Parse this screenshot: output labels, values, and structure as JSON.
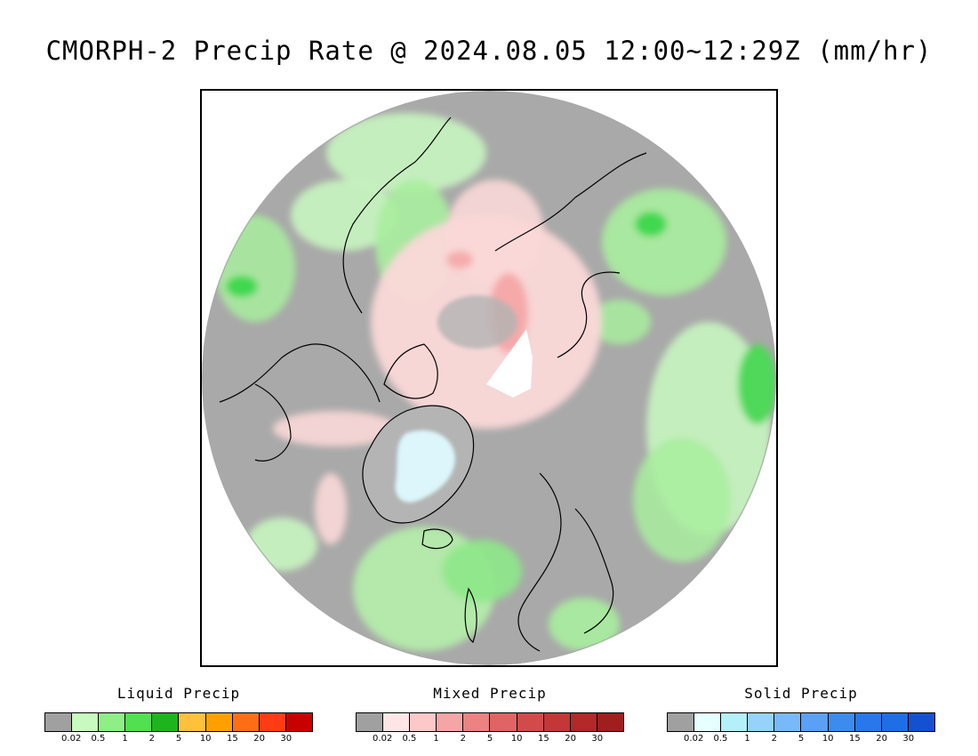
{
  "title": "CMORPH-2 Precip Rate @ 2024.08.05 12:00~12:29Z (mm/hr)",
  "map": {
    "projection": "north polar stereographic",
    "background_color": "#a9a9a9",
    "colors": {
      "liquid_light": "#c8f5c0",
      "liquid_mid": "#8ee88a",
      "liquid_strong": "#3fd84f",
      "mixed_light": "#fbd8d8",
      "mixed_mid": "#f4a7a7",
      "solid_light": "#dcf6fb",
      "coastline": "#000000"
    }
  },
  "legends": [
    {
      "title": "Liquid Precip",
      "colors": [
        "#a0a0a0",
        "#c8fac0",
        "#8eef86",
        "#50e050",
        "#1eb41e",
        "#ffc03c",
        "#ffa000",
        "#ff6e14",
        "#ff3c14",
        "#c80000"
      ],
      "ticks": [
        "0.02",
        "0.5",
        "1",
        "2",
        "5",
        "10",
        "15",
        "20",
        "30"
      ]
    },
    {
      "title": "Mixed Precip",
      "colors": [
        "#a0a0a0",
        "#ffe6e6",
        "#fcc8c8",
        "#f5a5a5",
        "#ec8282",
        "#e06464",
        "#d24b4b",
        "#c33737",
        "#b32828",
        "#a01e1e"
      ],
      "ticks": [
        "0.02",
        "0.5",
        "1",
        "2",
        "5",
        "10",
        "15",
        "20",
        "30"
      ]
    },
    {
      "title": "Solid Precip",
      "colors": [
        "#a0a0a0",
        "#e6ffff",
        "#b4f0fa",
        "#96d2fa",
        "#78b9fa",
        "#5aa0f5",
        "#3c8cf0",
        "#2878eb",
        "#1e6ee6",
        "#1450d2"
      ],
      "ticks": [
        "0.02",
        "0.5",
        "1",
        "2",
        "5",
        "10",
        "15",
        "20",
        "30"
      ]
    }
  ]
}
